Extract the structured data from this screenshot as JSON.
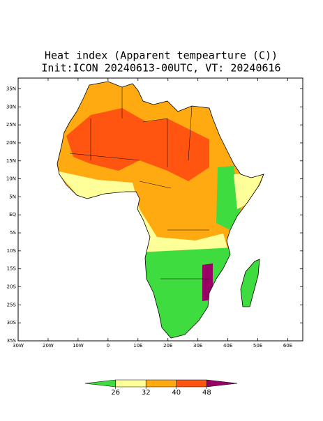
{
  "title": "Heat index (Apparent tempearture (C))",
  "subtitle": "Init:ICON 20240613-00UTC, VT: 20240616",
  "map": {
    "xlim": [
      -30,
      65
    ],
    "ylim": [
      -35,
      38
    ],
    "xticks": [
      {
        "value": -30,
        "label": "30W"
      },
      {
        "value": -20,
        "label": "20W"
      },
      {
        "value": -10,
        "label": "10W"
      },
      0,
      {
        "value": 10,
        "label": "10E"
      },
      {
        "value": 20,
        "label": "20E"
      },
      {
        "value": 30,
        "label": "30E"
      },
      {
        "value": 40,
        "label": "40E"
      },
      {
        "value": 50,
        "label": "50E"
      },
      {
        "value": 60,
        "label": "60E"
      }
    ],
    "yticks": [
      {
        "value": 35,
        "label": "35N"
      },
      {
        "value": 30,
        "label": "30N"
      },
      {
        "value": 25,
        "label": "25N"
      },
      {
        "value": 20,
        "label": "20N"
      },
      {
        "value": 15,
        "label": "15N"
      },
      {
        "value": 10,
        "label": "10N"
      },
      {
        "value": 5,
        "label": "5N"
      },
      {
        "value": 0,
        "label": "EQ"
      },
      {
        "value": -5,
        "label": "5S"
      },
      {
        "value": -10,
        "label": "10S"
      },
      {
        "value": -15,
        "label": "15S"
      },
      {
        "value": -20,
        "label": "20S"
      },
      {
        "value": -25,
        "label": "25S"
      },
      {
        "value": -30,
        "label": "30S"
      },
      {
        "value": -35,
        "label": "35S"
      }
    ]
  },
  "colorbar": {
    "levels": [
      26,
      32,
      40,
      48
    ],
    "colors": [
      "#3fdc3f",
      "#ffff99",
      "#ffaa11",
      "#ff5511",
      "#990066"
    ]
  }
}
